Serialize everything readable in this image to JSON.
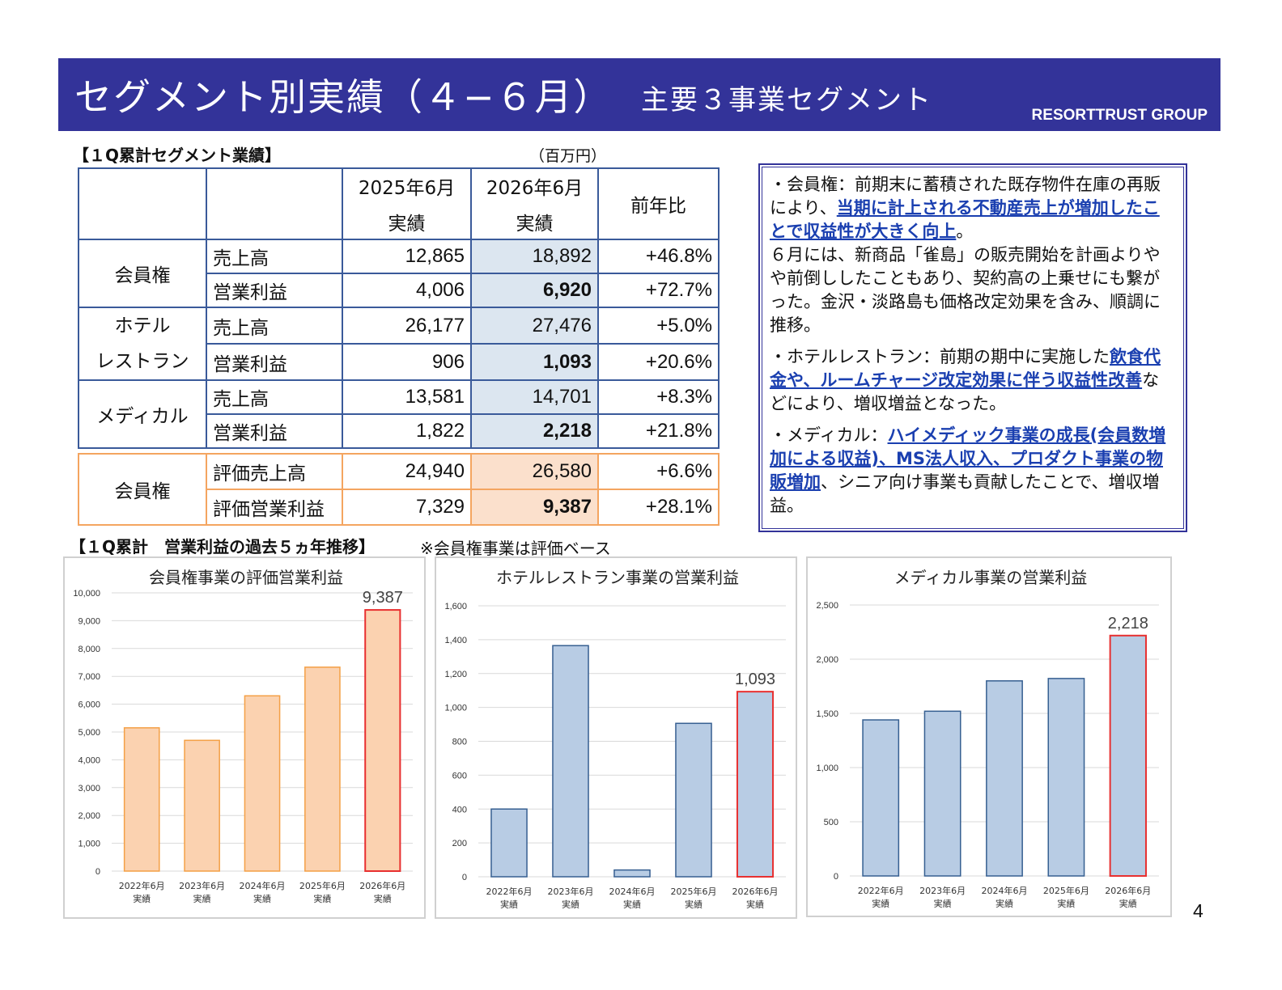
{
  "header": {
    "title": "セグメント別実績（４−６月）",
    "subtitle": "主要３事業セグメント",
    "group": "RESORTTRUST GROUP"
  },
  "table_section": {
    "heading": "【１Q累計セグメント業績】",
    "unit": "（百万円）",
    "col_prev": [
      "2025年6月",
      "実績"
    ],
    "col_curr": [
      "2026年6月",
      "実績"
    ],
    "col_yoy": "前年比",
    "rows": [
      {
        "segment": "会員権",
        "metric": "売上高",
        "prev": "12,865",
        "curr": "18,892",
        "yoy": "+46.8%"
      },
      {
        "segment": "",
        "metric": "営業利益",
        "prev": "4,006",
        "curr": "6,920",
        "yoy": "+72.7%"
      },
      {
        "segment": "ホテル",
        "metric": "売上高",
        "prev": "26,177",
        "curr": "27,476",
        "yoy": "+5.0%"
      },
      {
        "segment": "レストラン",
        "metric": "営業利益",
        "prev": "906",
        "curr": "1,093",
        "yoy": "+20.6%"
      },
      {
        "segment": "メディカル",
        "metric": "売上高",
        "prev": "13,581",
        "curr": "14,701",
        "yoy": "+8.3%"
      },
      {
        "segment": "",
        "metric": "営業利益",
        "prev": "1,822",
        "curr": "2,218",
        "yoy": "+21.8%"
      }
    ],
    "eval_rows": [
      {
        "segment": "会員権",
        "metric": "評価売上高",
        "prev": "24,940",
        "curr": "26,580",
        "yoy": "+6.6%"
      },
      {
        "segment": "",
        "metric": "評価営業利益",
        "prev": "7,329",
        "curr": "9,387",
        "yoy": "+28.1%"
      }
    ]
  },
  "comment": {
    "p1_a": "・会員権：前期末に蓄積された既存物件在庫の再販により、",
    "p1_u": "当期に計上される不動産売上が増加したことで収益性が大きく向上",
    "p1_b": "。",
    "p1_c": "６月には、新商品「雀島」の販売開始を計画よりやや前倒ししたこともあり、契約高の上乗せにも繋がった。金沢・淡路島も価格改定効果を含み、順調に推移。",
    "p2_a": "・ホテルレストラン：前期の期中に実施した",
    "p2_u": "飲食代金や、ルームチャージ改定効果に伴う収益性改善",
    "p2_b": "などにより、増収増益となった。",
    "p3_a": "・メディカル：",
    "p3_u": "ハイメディック事業の成長(会員数増加による収益)、MS法人収入、プロダクト事業の物販増加",
    "p3_b": "、シニア向け事業も貢献したことで、増収増益。"
  },
  "charts_section": {
    "heading": "【１Q累計　営業利益の過去５ヵ年推移】",
    "note": "※会員権事業は評価ベース"
  },
  "chart_data": [
    {
      "type": "bar",
      "title": "会員権事業の評価営業利益",
      "categories": [
        "2022年6月\n実績",
        "2023年6月\n実績",
        "2024年6月\n実績",
        "2025年6月\n実績",
        "2026年6月\n実績"
      ],
      "values": [
        5150,
        4700,
        6300,
        7329,
        9387
      ],
      "ylim": [
        0,
        10000
      ],
      "yticks": [
        0,
        1000,
        2000,
        3000,
        4000,
        5000,
        6000,
        7000,
        8000,
        9000,
        10000
      ],
      "labels": [
        "",
        "",
        "",
        "",
        "9,387"
      ],
      "color": "#fbd2b0",
      "edge": "#f4a046",
      "highlight_edge": "#e83030",
      "grid": true
    },
    {
      "type": "bar",
      "title": "ホテルレストラン事業の営業利益",
      "categories": [
        "2022年6月\n実績",
        "2023年6月\n実績",
        "2024年6月\n実績",
        "2025年6月\n実績",
        "2026年6月\n実績"
      ],
      "values": [
        400,
        1365,
        40,
        906,
        1093
      ],
      "ylim": [
        0,
        1600
      ],
      "yticks": [
        0,
        200,
        400,
        600,
        800,
        1000,
        1200,
        1400,
        1600
      ],
      "labels": [
        "",
        "",
        "",
        "",
        "1,093"
      ],
      "color": "#b8cce4",
      "edge": "#365f91",
      "highlight_edge": "#e83030",
      "grid": true
    },
    {
      "type": "bar",
      "title": "メディカル事業の営業利益",
      "categories": [
        "2022年6月\n実績",
        "2023年6月\n実績",
        "2024年6月\n実績",
        "2025年6月\n実績",
        "2026年6月\n実績"
      ],
      "values": [
        1440,
        1520,
        1800,
        1822,
        2218
      ],
      "ylim": [
        0,
        2500
      ],
      "yticks": [
        0,
        500,
        1000,
        1500,
        2000,
        2500
      ],
      "labels": [
        "",
        "",
        "",
        "",
        "2,218"
      ],
      "color": "#b8cce4",
      "edge": "#365f91",
      "highlight_edge": "#e83030",
      "grid": true
    }
  ],
  "page_number": "4"
}
